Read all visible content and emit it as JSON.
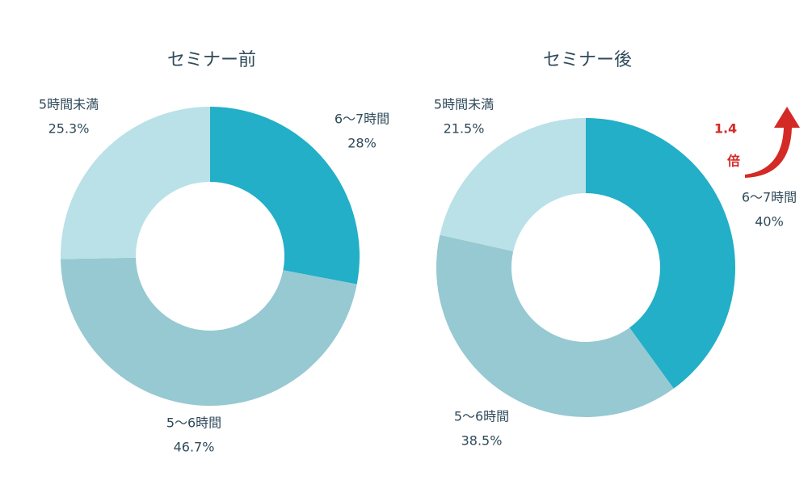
{
  "chart_data": [
    {
      "type": "pie",
      "title": "セミナー前",
      "categories": [
        "6〜7時間",
        "5〜6時間",
        "5時間未満"
      ],
      "values": [
        28,
        46.7,
        25.3
      ],
      "value_labels": [
        "28%",
        "46.7%",
        "25.3%"
      ],
      "colors": [
        "#22afc7",
        "#96c9d2",
        "#b9e1e7"
      ]
    },
    {
      "type": "pie",
      "title": "セミナー後",
      "categories": [
        "6〜7時間",
        "5〜6時間",
        "5時間未満"
      ],
      "values": [
        40,
        38.5,
        21.5
      ],
      "value_labels": [
        "40%",
        "38.5%",
        "21.5%"
      ],
      "colors": [
        "#22afc7",
        "#96c9d2",
        "#b9e1e7"
      ],
      "annotations": [
        "1.4",
        "倍"
      ]
    }
  ]
}
